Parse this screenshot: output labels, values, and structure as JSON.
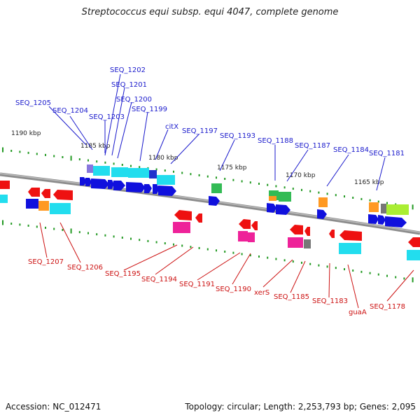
{
  "title": "Streptococcus equi subsp. equi 4047, complete genome",
  "footer": {
    "accession": "Accession: NC_012471",
    "summary": "Topology: circular; Length: 2,253,793 bp; Genes: 2,095"
  },
  "colors": {
    "backbone": "#888888",
    "ticks": "#229922",
    "label_top": "#1a1acc",
    "label_bottom": "#cc1111",
    "scale_text": "#222222",
    "gene_blue": "#1010dd",
    "gene_cyan": "#22ddee",
    "gene_purple": "#8877dd",
    "gene_green": "#33bb55",
    "gene_red": "#ee1111",
    "gene_magenta": "#ee2299",
    "gene_orange": "#ff9922",
    "gene_lime": "#aaee33",
    "gene_gray": "#777777"
  },
  "scale_labels": [
    "1190 kbp",
    "1185 kbp",
    "1180 kbp",
    "1175 kbp",
    "1170 kbp",
    "1165 kbp"
  ],
  "top_labels": [
    "SEQ_1202",
    "SEQ_1201",
    "SEQ_1200",
    "SEQ_1199",
    "SEQ_1205",
    "SEQ_1204",
    "SEQ_1203",
    "citX",
    "SEQ_1197",
    "SEQ_1193",
    "SEQ_1188",
    "SEQ_1187",
    "SEQ_1184",
    "SEQ_1181"
  ],
  "bottom_labels": [
    "SEQ_1207",
    "SEQ_1206",
    "SEQ_1195",
    "SEQ_1194",
    "SEQ_1191",
    "SEQ_1190",
    "xerS",
    "SEQ_1185",
    "SEQ_1183",
    "guaA",
    "SEQ_1178"
  ]
}
